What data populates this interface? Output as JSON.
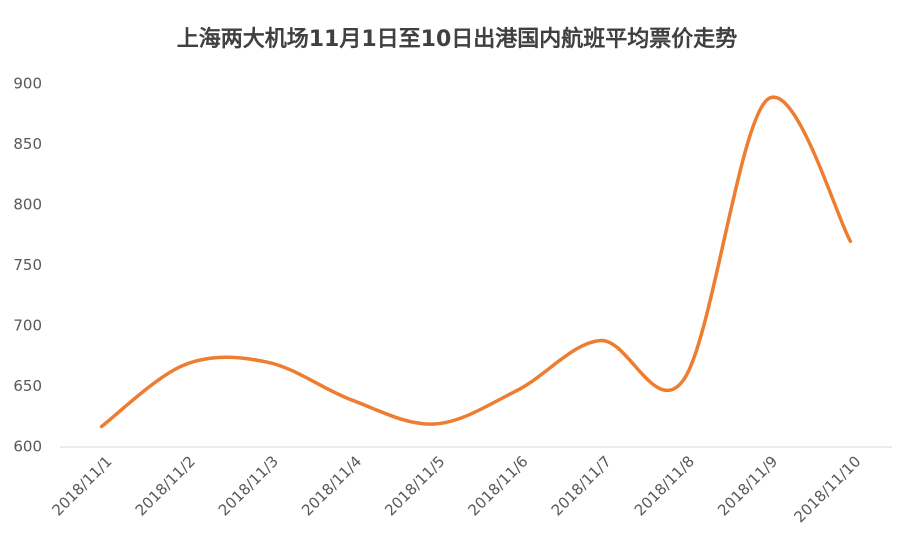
{
  "chart_data": {
    "type": "line",
    "title": "上海两大机场11月1日至10日出港国内航班平均票价走势",
    "categories": [
      "2018/11/1",
      "2018/11/2",
      "2018/11/3",
      "2018/11/4",
      "2018/11/5",
      "2018/11/6",
      "2018/11/7",
      "2018/11/8",
      "2018/11/9",
      "2018/11/10"
    ],
    "values": [
      617,
      668,
      670,
      639,
      619,
      647,
      688,
      656,
      887,
      770
    ],
    "color": "#ed7d31",
    "smooth": true,
    "ylim": [
      600,
      900
    ],
    "yticks": [
      600,
      650,
      700,
      750,
      800,
      850,
      900
    ],
    "grid": false
  }
}
